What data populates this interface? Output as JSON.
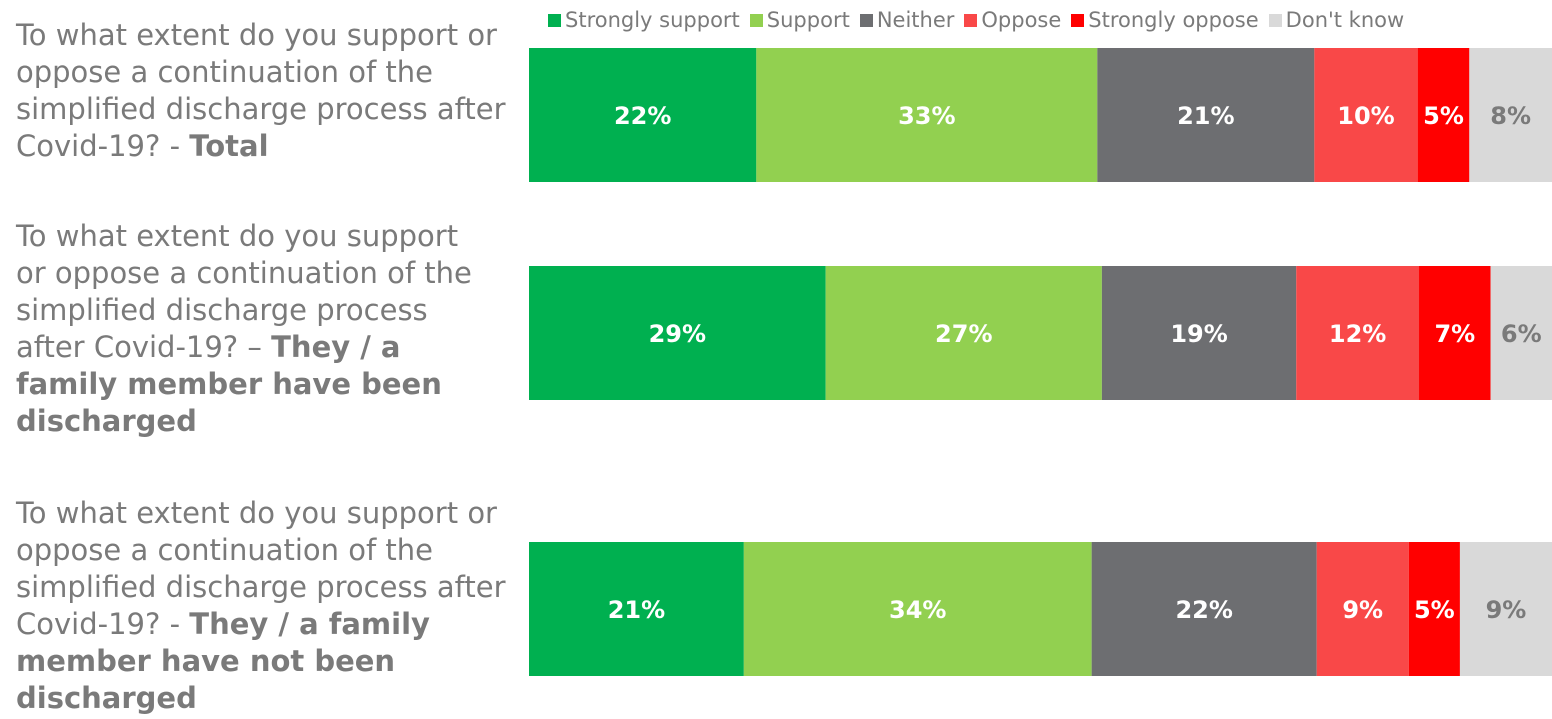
{
  "chart_data": {
    "type": "bar",
    "orientation": "horizontal",
    "stacked": true,
    "legend_position": "top",
    "categories": [
      {
        "question": "To what extent do you support or oppose a continuation of the simplified discharge process after Covid-19?  - ",
        "group": "Total"
      },
      {
        "question": "To what extent do you support or oppose a continuation of the simplified discharge process after Covid-19? – ",
        "group": "They / a family member have been discharged"
      },
      {
        "question": "To what extent do you support or oppose a continuation of the simplified discharge process after Covid-19?  - ",
        "group": "They / a family member have not been discharged"
      }
    ],
    "series": [
      {
        "name": "Strongly support",
        "color": "#00b050",
        "label_color": "#ffffff",
        "values": [
          22,
          29,
          21
        ],
        "labels": [
          "22%",
          "29%",
          "21%"
        ]
      },
      {
        "name": "Support",
        "color": "#92d050",
        "label_color": "#ffffff",
        "values": [
          33,
          27,
          34
        ],
        "labels": [
          "33%",
          "27%",
          "34%"
        ]
      },
      {
        "name": "Neither",
        "color": "#6d6e71",
        "label_color": "#ffffff",
        "values": [
          21,
          19,
          22
        ],
        "labels": [
          "21%",
          "19%",
          "22%"
        ]
      },
      {
        "name": "Oppose",
        "color": "#f94848",
        "label_color": "#ffffff",
        "values": [
          10,
          12,
          9
        ],
        "labels": [
          "10%",
          "12%",
          "9%"
        ]
      },
      {
        "name": "Strongly oppose",
        "color": "#ff0000",
        "label_color": "#ffffff",
        "values": [
          5,
          7,
          5
        ],
        "labels": [
          "5%",
          "7%",
          "5%"
        ]
      },
      {
        "name": "Don't know",
        "color": "#d9d9d9",
        "label_color": "#7a7a7a",
        "values": [
          8,
          6,
          9
        ],
        "labels": [
          "8%",
          "6%",
          "9%"
        ]
      }
    ]
  }
}
